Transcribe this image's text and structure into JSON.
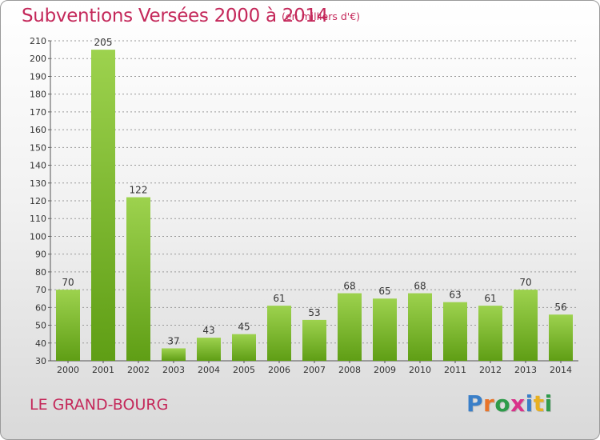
{
  "header": {
    "title": "Subventions Versées 2000 à 2014",
    "unit": "(en milliers d'€)"
  },
  "footer": {
    "commune": "LE GRAND-BOURG",
    "logo": "Proxiti",
    "logo_colors": [
      "#3a7fc8",
      "#e8742a",
      "#2e9b4a",
      "#d9328a",
      "#3a7fc8",
      "#e8b020",
      "#2e9b4a"
    ]
  },
  "colors": {
    "bar_top": "#9dd24e",
    "bar_bottom": "#5f9e15",
    "title": "#c4285a",
    "grid": "#999999"
  },
  "chart_data": {
    "type": "bar",
    "categories": [
      "2000",
      "2001",
      "2002",
      "2003",
      "2004",
      "2005",
      "2006",
      "2007",
      "2008",
      "2009",
      "2010",
      "2011",
      "2012",
      "2013",
      "2014"
    ],
    "values": [
      70,
      205,
      122,
      37,
      43,
      45,
      61,
      53,
      68,
      65,
      68,
      63,
      61,
      70,
      56
    ],
    "ylim": [
      30,
      210
    ],
    "yticks": [
      30,
      40,
      50,
      60,
      70,
      80,
      90,
      100,
      110,
      120,
      130,
      140,
      150,
      160,
      170,
      180,
      190,
      200,
      210
    ],
    "grid": true,
    "legend": "none"
  }
}
